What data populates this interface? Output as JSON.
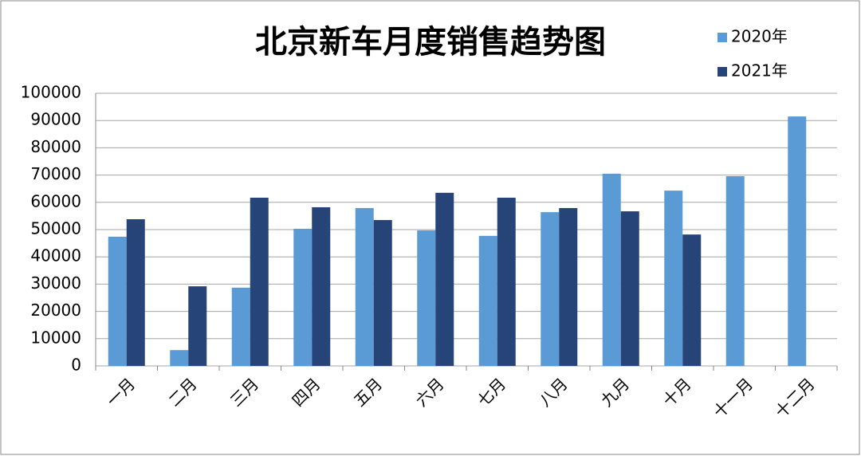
{
  "chart_data": {
    "type": "bar",
    "title": "北京新车月度销售趋势图",
    "categories": [
      "一月",
      "二月",
      "三月",
      "四月",
      "五月",
      "六月",
      "七月",
      "八月",
      "九月",
      "十月",
      "十一月",
      "十二月"
    ],
    "series": [
      {
        "name": "2020年",
        "color": "#5b9bd5",
        "values": [
          47400,
          5800,
          28700,
          50300,
          57900,
          49700,
          47700,
          56400,
          70500,
          64300,
          69600,
          91500
        ]
      },
      {
        "name": "2021年",
        "color": "#264478",
        "values": [
          53800,
          29200,
          61700,
          58200,
          53500,
          63500,
          61700,
          57900,
          56700,
          48200,
          null,
          null
        ]
      }
    ],
    "ylim": [
      0,
      100000
    ],
    "yticks": [
      0,
      10000,
      20000,
      30000,
      40000,
      50000,
      60000,
      70000,
      80000,
      90000,
      100000
    ],
    "grid": true,
    "legend": "top-right"
  }
}
